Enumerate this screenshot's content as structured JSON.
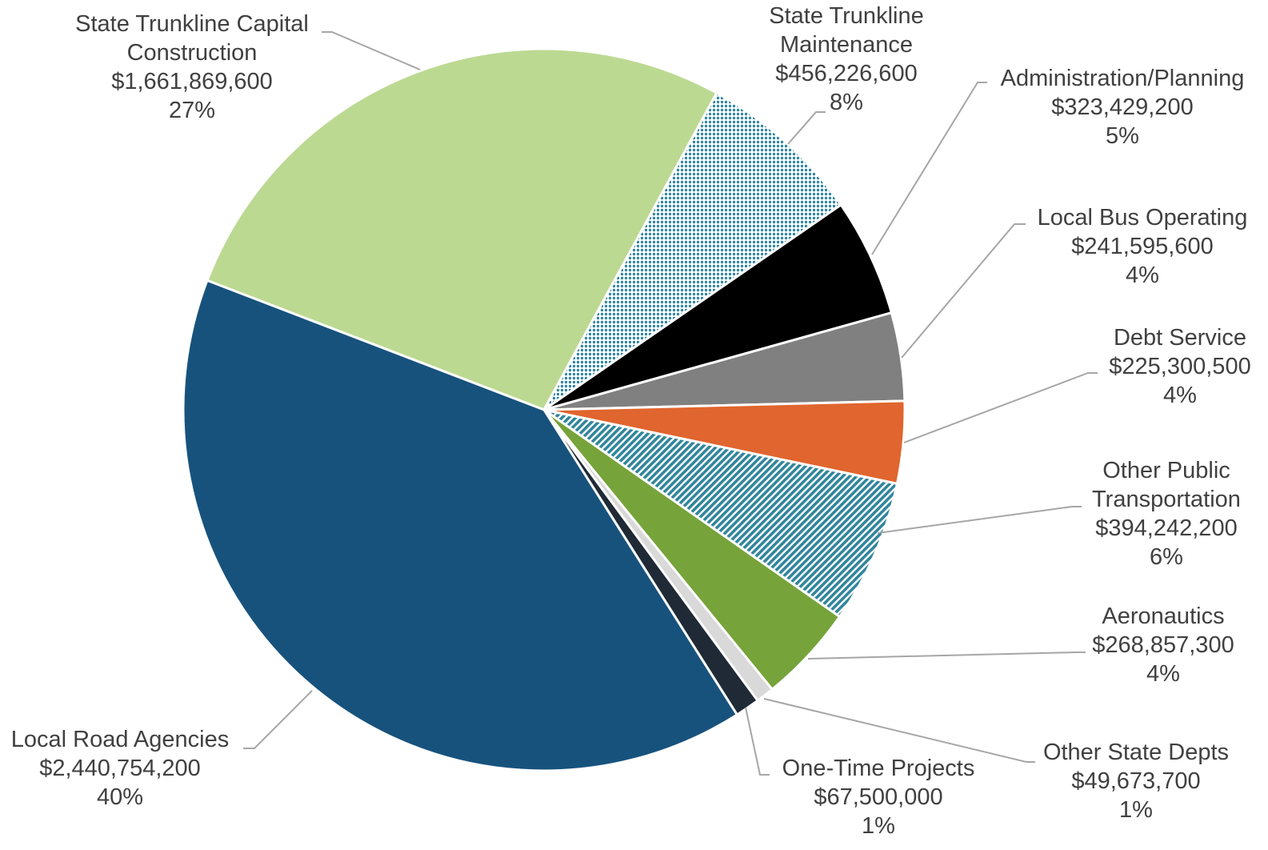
{
  "chart_data": {
    "type": "pie",
    "categories": [
      "State Trunkline Capital Construction",
      "State Trunkline Maintenance",
      "Administration/Planning",
      "Local Bus Operating",
      "Debt Service",
      "Other Public Transportation",
      "Aeronautics",
      "Other State Depts",
      "One-Time Projects",
      "Local Road Agencies"
    ],
    "values": [
      1661869600,
      456226600,
      323429200,
      241595600,
      225300500,
      394242200,
      268857300,
      49673700,
      67500000,
      2440754200
    ],
    "value_labels": [
      "$1,661,869,600",
      "$456,226,600",
      "$323,429,200",
      "$241,595,600",
      "$225,300,500",
      "$394,242,200",
      "$268,857,300",
      "$49,673,700",
      "$67,500,000",
      "$2,440,754,200"
    ],
    "percent_labels": [
      "27%",
      "8%",
      "5%",
      "4%",
      "4%",
      "6%",
      "4%",
      "1%",
      "1%",
      "40%"
    ],
    "colors": [
      "#bcd992",
      "#31859c",
      "#000000",
      "#808080",
      "#e0652e",
      "#31859c",
      "#76a33a",
      "#d9d9d9",
      "#1f2a36",
      "#17527d"
    ],
    "patterns": [
      "solid",
      "dots",
      "solid",
      "solid",
      "solid",
      "hatch",
      "solid",
      "solid",
      "solid",
      "solid"
    ]
  }
}
